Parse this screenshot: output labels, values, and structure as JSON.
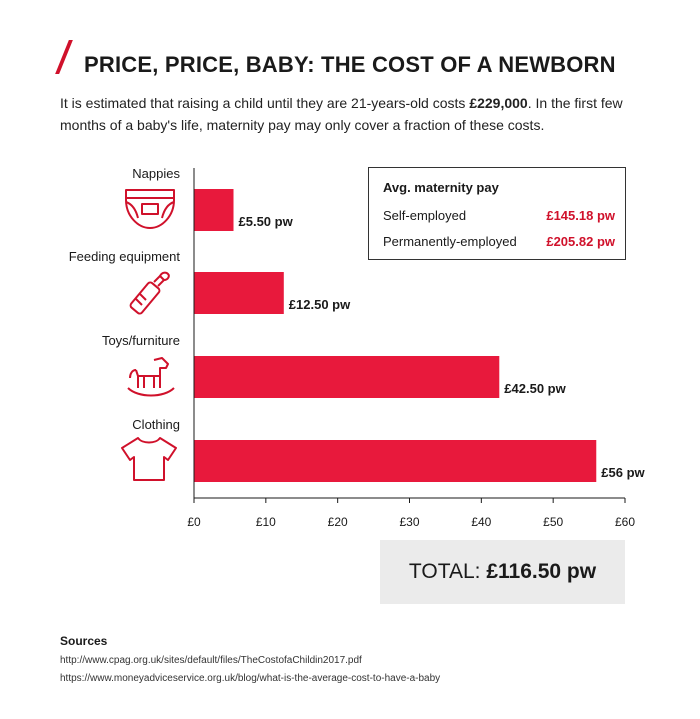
{
  "header": {
    "title": "PRICE, PRICE, BABY: THE COST OF A NEWBORN",
    "subtitle_pre": "It is estimated that raising a child until they are 21-years-old costs ",
    "subtitle_bold": "£229,000",
    "subtitle_post": ". In the first few months of a baby's life, maternity pay may only cover a fraction of these costs."
  },
  "colors": {
    "accent": "#d0112b",
    "bar": "#e8193c",
    "total_bg": "#ebebeb"
  },
  "chart_data": {
    "type": "bar",
    "orientation": "horizontal",
    "categories": [
      "Nappies",
      "Feeding equipment",
      "Toys/furniture",
      "Clothing"
    ],
    "icons": [
      "nappy-icon",
      "baby-bottle-icon",
      "rocking-horse-icon",
      "tshirt-icon"
    ],
    "values": [
      5.5,
      12.5,
      42.5,
      56
    ],
    "value_labels": [
      "£5.50 pw",
      "£12.50 pw",
      "£42.50 pw",
      "£56 pw"
    ],
    "xlim": [
      0,
      60
    ],
    "x_ticks": [
      0,
      10,
      20,
      30,
      40,
      50,
      60
    ],
    "x_tick_labels": [
      "£0",
      "£10",
      "£20",
      "£30",
      "£40",
      "£50",
      "£60"
    ],
    "grid": false
  },
  "legend": {
    "title": "Avg. maternity pay",
    "rows": [
      {
        "label": "Self-employed",
        "value": "£145.18 pw"
      },
      {
        "label": "Permanently-employed",
        "value": "£205.82 pw"
      }
    ]
  },
  "total": {
    "label": "TOTAL: ",
    "amount": "£116.50 pw"
  },
  "sources": {
    "title": "Sources",
    "links": [
      "http://www.cpag.org.uk/sites/default/files/TheCostofaChildin2017.pdf",
      "https://www.moneyadviceservice.org.uk/blog/what-is-the-average-cost-to-have-a-baby"
    ]
  }
}
